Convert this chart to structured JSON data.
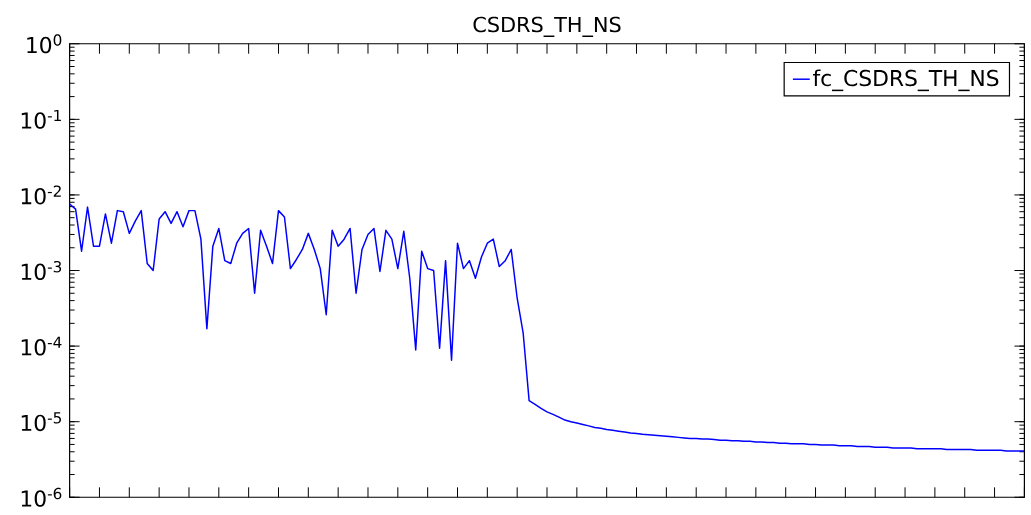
{
  "chart_data": {
    "type": "line",
    "title": "CSDRS_TH_NS",
    "categories": [
      null,
      null,
      null,
      null,
      null,
      null,
      null,
      null,
      null,
      null,
      null,
      null,
      null,
      null,
      null,
      null,
      null,
      null,
      null,
      null,
      null,
      null,
      null,
      null,
      null,
      null,
      null,
      null,
      null,
      null,
      null,
      null,
      null,
      null,
      null,
      null,
      null,
      null,
      null,
      null,
      null,
      null,
      null,
      null,
      null,
      null,
      null,
      null,
      null,
      null,
      null,
      null,
      null,
      null,
      null,
      null,
      null,
      null,
      null,
      null,
      null,
      null,
      null,
      null,
      null,
      null,
      null,
      null,
      null,
      null,
      null,
      null,
      null,
      null,
      null,
      null,
      null,
      null,
      null,
      null,
      null,
      null,
      null,
      null,
      null,
      null,
      null,
      null,
      null,
      null,
      null,
      null,
      null,
      null,
      null,
      null,
      null,
      null,
      null,
      null,
      null,
      null,
      null,
      null,
      null,
      null,
      null,
      null,
      null,
      null,
      null,
      null,
      null,
      null,
      null,
      null,
      null,
      null,
      null,
      null,
      null,
      null,
      null,
      null,
      null,
      null,
      null,
      null,
      null,
      null,
      null,
      null,
      null,
      null,
      null,
      null,
      null,
      null,
      null,
      null,
      null,
      null,
      null,
      null,
      null,
      null,
      null,
      null,
      null,
      null,
      null,
      null,
      null,
      null,
      null,
      null,
      null,
      null,
      null,
      null,
      null
    ],
    "series": [
      {
        "name": "fc_CSDRS_TH_NS",
        "color": "#0000ff",
        "values": [
          0.0076,
          0.0065,
          0.0018,
          0.0069,
          0.0021,
          0.0021,
          0.0056,
          0.0023,
          0.0062,
          0.006,
          0.0031,
          0.0045,
          0.0062,
          0.00124,
          0.001,
          0.0048,
          0.006,
          0.0042,
          0.006,
          0.0038,
          0.0062,
          0.0062,
          0.0026,
          0.00017,
          0.0021,
          0.0036,
          0.00135,
          0.00124,
          0.0023,
          0.0031,
          0.0036,
          0.0005,
          0.0034,
          0.0021,
          0.00124,
          0.0062,
          0.0051,
          0.00106,
          0.0014,
          0.0019,
          0.0031,
          0.0019,
          0.00106,
          0.00026,
          0.0034,
          0.0021,
          0.0026,
          0.0036,
          0.0005,
          0.0019,
          0.003,
          0.0036,
          0.00097,
          0.0034,
          0.0026,
          0.00106,
          0.0033,
          0.00079,
          8.9e-05,
          0.0018,
          0.00106,
          0.001,
          9.4e-05,
          0.00135,
          6.5e-05,
          0.0023,
          0.00106,
          0.00135,
          0.00079,
          0.0015,
          0.0023,
          0.0026,
          0.00113,
          0.00135,
          0.0019,
          0.00043,
          0.00015,
          1.9e-05,
          1.7e-05,
          1.5e-05,
          1.35e-05,
          1.25e-05,
          1.15e-05,
          1.05e-05,
          1e-05,
          9.6e-06,
          9.2e-06,
          8.8e-06,
          8.4e-06,
          8.2e-06,
          7.9e-06,
          7.7e-06,
          7.5e-06,
          7.3e-06,
          7.1e-06,
          7e-06,
          6.8e-06,
          6.7e-06,
          6.6e-06,
          6.5e-06,
          6.4e-06,
          6.3e-06,
          6.2e-06,
          6.1e-06,
          6e-06,
          6e-06,
          5.9e-06,
          5.9e-06,
          5.8e-06,
          5.7e-06,
          5.7e-06,
          5.6e-06,
          5.6e-06,
          5.5e-06,
          5.5e-06,
          5.4e-06,
          5.4e-06,
          5.3e-06,
          5.3e-06,
          5.2e-06,
          5.2e-06,
          5.1e-06,
          5.1e-06,
          5.1e-06,
          5e-06,
          5e-06,
          4.9e-06,
          4.9e-06,
          4.9e-06,
          4.8e-06,
          4.8e-06,
          4.8e-06,
          4.7e-06,
          4.7e-06,
          4.7e-06,
          4.6e-06,
          4.6e-06,
          4.6e-06,
          4.5e-06,
          4.5e-06,
          4.5e-06,
          4.5e-06,
          4.4e-06,
          4.4e-06,
          4.4e-06,
          4.4e-06,
          4.4e-06,
          4.3e-06,
          4.3e-06,
          4.3e-06,
          4.3e-06,
          4.3e-06,
          4.2e-06,
          4.2e-06,
          4.2e-06,
          4.2e-06,
          4.2e-06,
          4.1e-06,
          4.1e-06,
          4.1e-06,
          4.1e-06
        ]
      }
    ],
    "ylim": [
      1e-06,
      1
    ],
    "yticks": [
      {
        "value": 1e-06,
        "label": "10$^{-6}$"
      },
      {
        "value": 1e-05,
        "label": "10$^{-5}$"
      },
      {
        "value": 0.0001,
        "label": "10$^{-4}$"
      },
      {
        "value": 0.001,
        "label": "10$^{-3}$"
      },
      {
        "value": 0.01,
        "label": "10$^{-2}$"
      },
      {
        "value": 0.1,
        "label": "10$^{-1}$"
      },
      {
        "value": 1,
        "label": "10$^{0}$"
      }
    ],
    "log": "y",
    "legend": "top right",
    "marker": "none",
    "line_style": "solid"
  }
}
